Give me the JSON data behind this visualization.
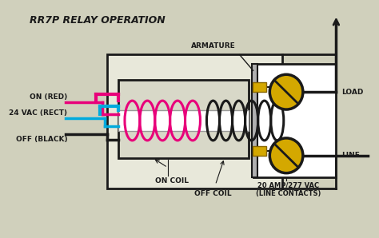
{
  "title": "RR7P RELAY OPERATION",
  "bg_color": "#d0d0bc",
  "line_color": "#1a1a1a",
  "on_wire_color": "#e8007a",
  "vac_wire_color": "#00aadd",
  "off_wire_color": "#1a1a1a",
  "on_coil_color": "#e8007a",
  "off_coil_color": "#1a1a1a",
  "contact_color": "#d4a800",
  "housing_fill": "#e8e8da",
  "contact_box_fill": "#ffffff",
  "labels": {
    "on_red": "ON (RED)",
    "vac_rect": "24 VAC (RECT)",
    "off_black": "OFF (BLACK)",
    "on_coil": "ON COIL",
    "off_coil": "OFF COIL",
    "armature": "ARMATURE",
    "load": "LOAD",
    "line": "LINE",
    "contacts": "20 AMP/277 VAC\n(LINE CONTACTS)"
  },
  "font_size_title": 9,
  "font_size_label": 6.5
}
